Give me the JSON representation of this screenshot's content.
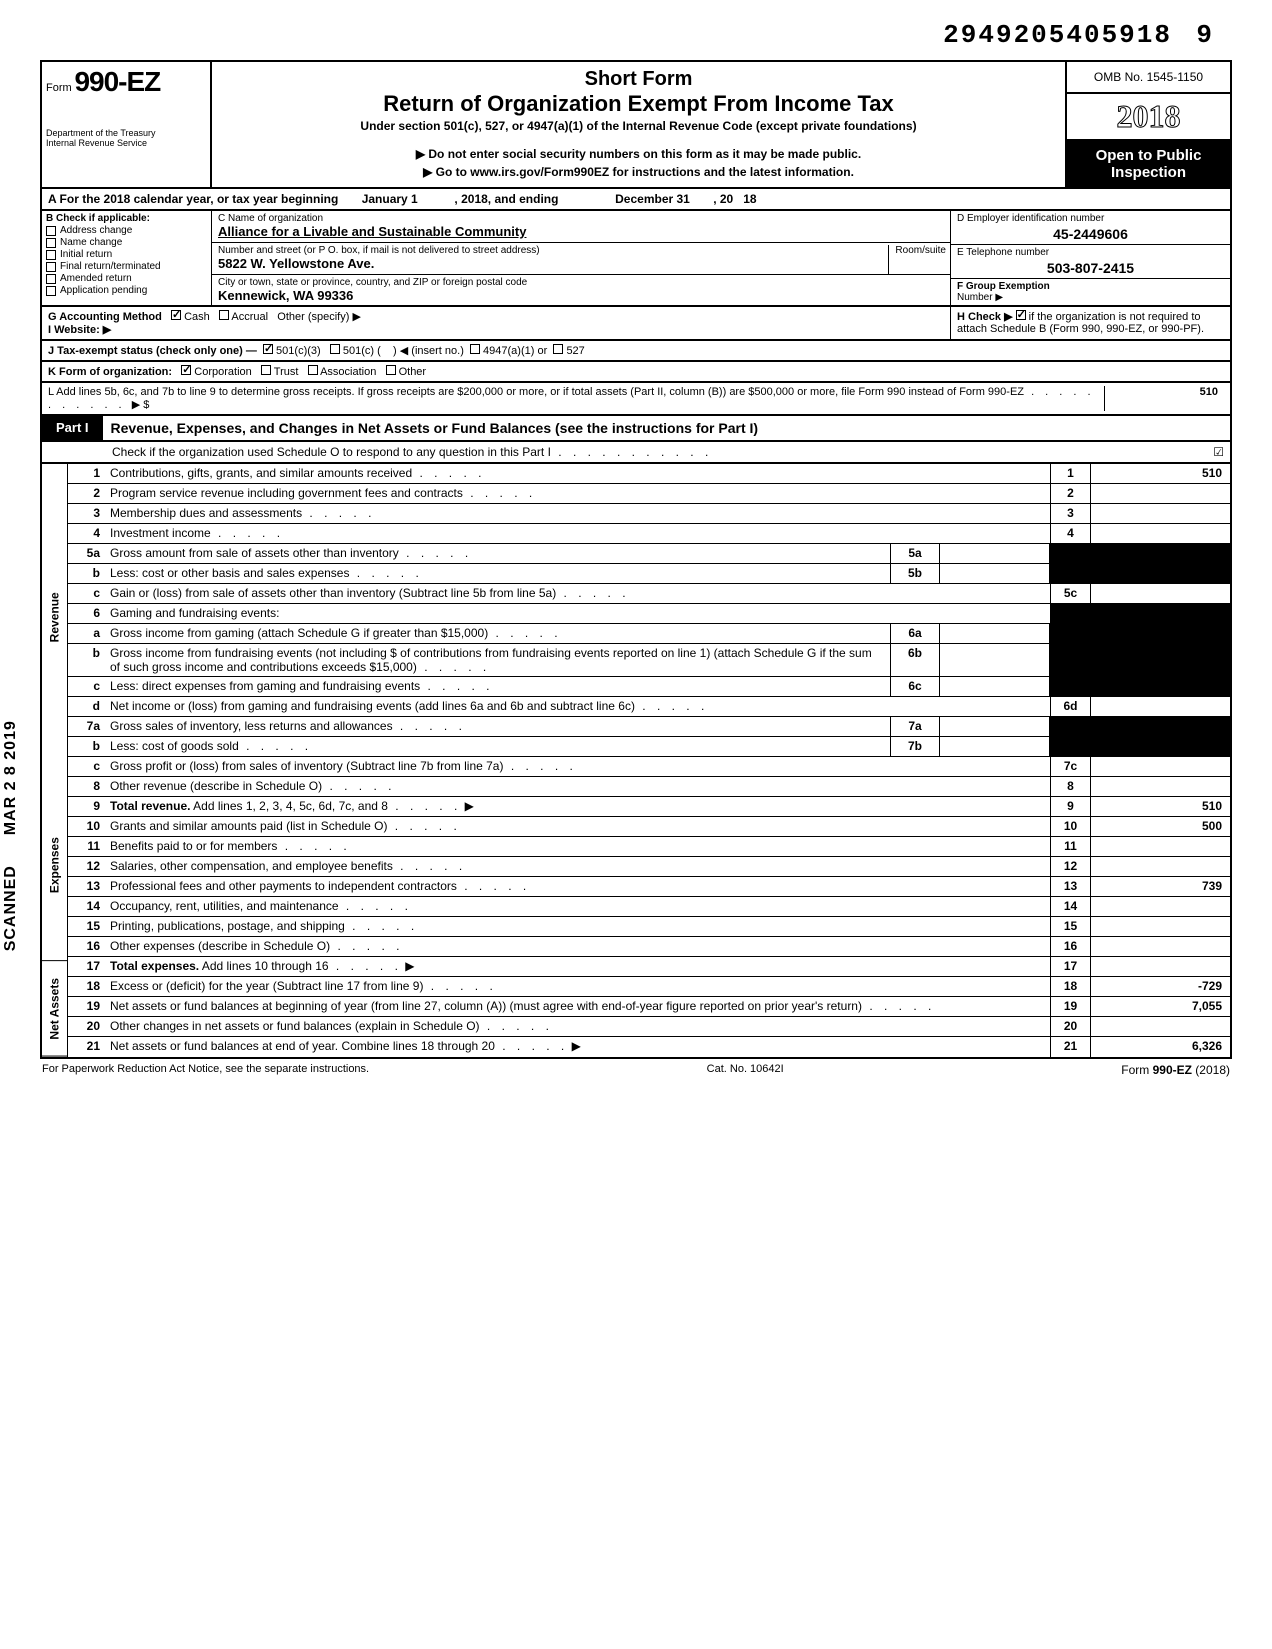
{
  "doc_number": "2949205405918",
  "doc_number_suffix": "9",
  "header": {
    "form_prefix": "Form",
    "form_number": "990-EZ",
    "dept": "Department of the Treasury",
    "irs": "Internal Revenue Service",
    "title1": "Short Form",
    "title2": "Return of Organization Exempt From Income Tax",
    "subtitle": "Under section 501(c), 527, or 4947(a)(1) of the Internal Revenue Code (except private foundations)",
    "note": "▶ Do not enter social security numbers on this form as it may be made public.",
    "link": "▶ Go to www.irs.gov/Form990EZ for instructions and the latest information.",
    "omb": "OMB No. 1545-1150",
    "year": "2018",
    "open1": "Open to Public",
    "open2": "Inspection"
  },
  "row_a": {
    "prefix": "A  For the 2018 calendar year, or tax year beginning",
    "begin": "January 1",
    "mid": ", 2018, and ending",
    "end": "December 31",
    "suffix": ", 20",
    "yr": "18"
  },
  "col_b": {
    "header": "B  Check if applicable:",
    "items": [
      "Address change",
      "Name change",
      "Initial return",
      "Final return/terminated",
      "Amended return",
      "Application pending"
    ]
  },
  "col_c": {
    "label_name": "C  Name of organization",
    "name": "Alliance for a Livable and Sustainable Community",
    "label_street": "Number and street (or P O. box, if mail is not delivered to street address)",
    "street": "5822 W. Yellowstone Ave.",
    "room_label": "Room/suite",
    "label_city": "City or town, state or province, country, and ZIP or foreign postal code",
    "city": "Kennewick, WA 99336"
  },
  "col_d": {
    "label": "D  Employer identification number",
    "value": "45-2449606"
  },
  "col_e": {
    "label": "E  Telephone number",
    "value": "503-807-2415"
  },
  "col_f": {
    "label": "F  Group Exemption",
    "label2": "Number ▶"
  },
  "row_g": {
    "label": "G  Accounting Method",
    "cash": "Cash",
    "accrual": "Accrual",
    "other": "Other (specify) ▶"
  },
  "row_h": {
    "text1": "H  Check ▶",
    "text2": "if the organization is not required to attach Schedule B (Form 990, 990-EZ, or 990-PF)."
  },
  "row_i": {
    "label": "I   Website: ▶"
  },
  "row_j": {
    "label": "J  Tax-exempt status (check only one) —",
    "opt1": "501(c)(3)",
    "opt2": "501(c) (",
    "opt2b": ") ◀ (insert no.)",
    "opt3": "4947(a)(1) or",
    "opt4": "527"
  },
  "row_k": {
    "label": "K  Form of organization:",
    "corp": "Corporation",
    "trust": "Trust",
    "assoc": "Association",
    "other": "Other"
  },
  "row_l": {
    "text": "L  Add lines 5b, 6c, and 7b to line 9 to determine gross receipts. If gross receipts are $200,000 or more, or if total assets (Part II, column (B)) are $500,000 or more, file Form 990 instead of Form 990-EZ",
    "arrow": "▶  $",
    "value": "510"
  },
  "part1": {
    "label": "Part I",
    "title": "Revenue, Expenses, and Changes in Net Assets or Fund Balances (see the instructions for Part I)",
    "sub": "Check if the organization used Schedule O to respond to any question in this Part I",
    "checked": "☑"
  },
  "side_labels": {
    "revenue": "Revenue",
    "expenses": "Expenses",
    "netassets": "Net Assets"
  },
  "stamps": {
    "date": "MAR 2 8 2019",
    "scanned": "SCANNED"
  },
  "lines": {
    "l1": {
      "n": "1",
      "d": "Contributions, gifts, grants, and similar amounts received",
      "box": "1",
      "v": "510"
    },
    "l2": {
      "n": "2",
      "d": "Program service revenue including government fees and contracts",
      "box": "2",
      "v": ""
    },
    "l3": {
      "n": "3",
      "d": "Membership dues and assessments",
      "box": "3",
      "v": ""
    },
    "l4": {
      "n": "4",
      "d": "Investment income",
      "box": "4",
      "v": ""
    },
    "l5a": {
      "n": "5a",
      "d": "Gross amount from sale of assets other than inventory",
      "ib": "5a"
    },
    "l5b": {
      "n": "b",
      "d": "Less: cost or other basis and sales expenses",
      "ib": "5b"
    },
    "l5c": {
      "n": "c",
      "d": "Gain or (loss) from sale of assets other than inventory (Subtract line 5b from line 5a)",
      "box": "5c",
      "v": ""
    },
    "l6": {
      "n": "6",
      "d": "Gaming and fundraising events:"
    },
    "l6a": {
      "n": "a",
      "d": "Gross income from gaming (attach Schedule G if greater than $15,000)",
      "ib": "6a"
    },
    "l6b": {
      "n": "b",
      "d": "Gross income from fundraising events (not including  $                            of contributions from fundraising events reported on line 1) (attach Schedule G if the sum of such gross income and contributions exceeds $15,000)",
      "ib": "6b"
    },
    "l6c": {
      "n": "c",
      "d": "Less: direct expenses from gaming and fundraising events",
      "ib": "6c"
    },
    "l6d": {
      "n": "d",
      "d": "Net income or (loss) from gaming and fundraising events (add lines 6a and 6b and subtract line 6c)",
      "box": "6d",
      "v": ""
    },
    "l7a": {
      "n": "7a",
      "d": "Gross sales of inventory, less returns and allowances",
      "ib": "7a"
    },
    "l7b": {
      "n": "b",
      "d": "Less: cost of goods sold",
      "ib": "7b"
    },
    "l7c": {
      "n": "c",
      "d": "Gross profit or (loss) from sales of inventory (Subtract line 7b from line 7a)",
      "box": "7c",
      "v": ""
    },
    "l8": {
      "n": "8",
      "d": "Other revenue (describe in Schedule O)",
      "box": "8",
      "v": ""
    },
    "l9": {
      "n": "9",
      "d": "Total revenue. Add lines 1, 2, 3, 4, 5c, 6d, 7c, and 8",
      "box": "9",
      "v": "510",
      "arrow": true,
      "bold": true
    },
    "l10": {
      "n": "10",
      "d": "Grants and similar amounts paid (list in Schedule O)",
      "box": "10",
      "v": "500"
    },
    "l11": {
      "n": "11",
      "d": "Benefits paid to or for members",
      "box": "11",
      "v": ""
    },
    "l12": {
      "n": "12",
      "d": "Salaries, other compensation, and employee benefits",
      "box": "12",
      "v": ""
    },
    "l13": {
      "n": "13",
      "d": "Professional fees and other payments to independent contractors",
      "box": "13",
      "v": "739"
    },
    "l14": {
      "n": "14",
      "d": "Occupancy, rent, utilities, and maintenance",
      "box": "14",
      "v": ""
    },
    "l15": {
      "n": "15",
      "d": "Printing, publications, postage, and shipping",
      "box": "15",
      "v": ""
    },
    "l16": {
      "n": "16",
      "d": "Other expenses (describe in Schedule O)",
      "box": "16",
      "v": ""
    },
    "l17": {
      "n": "17",
      "d": "Total expenses. Add lines 10 through 16",
      "box": "17",
      "v": "",
      "arrow": true,
      "bold": true
    },
    "l18": {
      "n": "18",
      "d": "Excess or (deficit) for the year (Subtract line 17 from line 9)",
      "box": "18",
      "v": "-729"
    },
    "l19": {
      "n": "19",
      "d": "Net assets or fund balances at beginning of year (from line 27, column (A)) (must agree with end-of-year figure reported on prior year's return)",
      "box": "19",
      "v": "7,055"
    },
    "l20": {
      "n": "20",
      "d": "Other changes in net assets or fund balances (explain in Schedule O)",
      "box": "20",
      "v": ""
    },
    "l21": {
      "n": "21",
      "d": "Net assets or fund balances at end of year. Combine lines 18 through 20",
      "box": "21",
      "v": "6,326",
      "arrow": true
    }
  },
  "footer": {
    "left": "For Paperwork Reduction Act Notice, see the separate instructions.",
    "center": "Cat. No. 10642I",
    "right": "Form 990-EZ (2018)"
  }
}
